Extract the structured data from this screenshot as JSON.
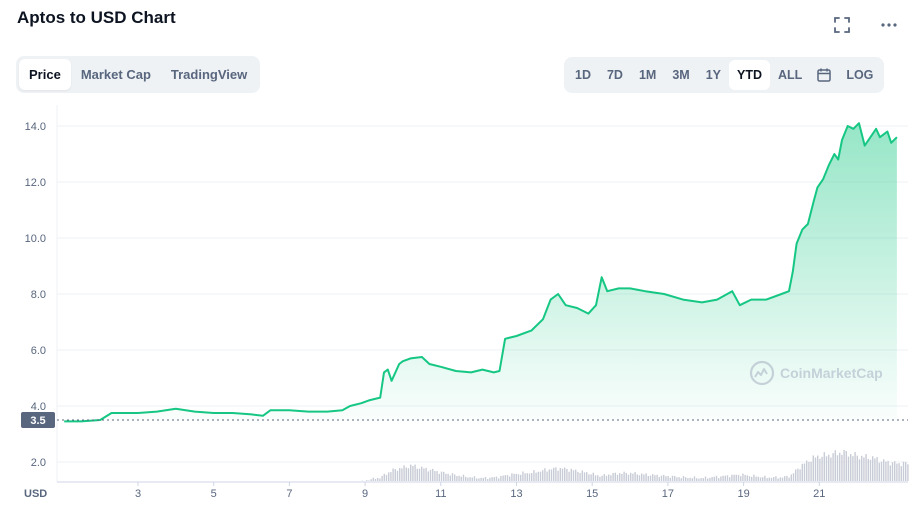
{
  "page": {
    "title": "Aptos to USD Chart"
  },
  "icons": {
    "expand": "fullscreen-icon",
    "more": "more-horizontal-icon",
    "calendar": "calendar-icon",
    "watermark": "coinmarketcap-logo"
  },
  "tabs": [
    {
      "label": "Price",
      "active": true
    },
    {
      "label": "Market Cap",
      "active": false
    },
    {
      "label": "TradingView",
      "active": false
    }
  ],
  "ranges": [
    {
      "label": "1D",
      "active": false
    },
    {
      "label": "7D",
      "active": false
    },
    {
      "label": "1M",
      "active": false
    },
    {
      "label": "3M",
      "active": false
    },
    {
      "label": "1Y",
      "active": false
    },
    {
      "label": "YTD",
      "active": true
    },
    {
      "label": "ALL",
      "active": false
    }
  ],
  "log_label": "LOG",
  "watermark_text": "CoinMarketCap",
  "colors": {
    "line": "#16c784",
    "volume": "#c8ccd6",
    "accent_text": "#58667e",
    "price_tag": "#58667e"
  },
  "chart_data": {
    "type": "line",
    "title": "Aptos to USD Chart",
    "xlabel": "",
    "ylabel": "USD",
    "ylim": [
      3.5,
      14.5
    ],
    "y_ticks": [
      "14.0",
      "12.0",
      "10.0",
      "8.0",
      "6.0",
      "4.0"
    ],
    "volume_tick": "2.0",
    "x_ticks": [
      "3",
      "5",
      "7",
      "9",
      "11",
      "13",
      "15",
      "17",
      "19",
      "21"
    ],
    "x_tick_days": [
      3,
      5,
      7,
      9,
      11,
      13,
      15,
      17,
      19,
      21
    ],
    "current_price_label": "3.5",
    "currency_label": "USD",
    "series": [
      {
        "x": [
          1.05,
          1.5,
          2.0,
          2.3,
          2.5,
          3.0,
          3.5,
          4.0,
          4.5,
          5.0,
          5.5,
          6.0,
          6.3,
          6.5,
          7.0,
          7.5,
          8.0,
          8.4,
          8.6,
          8.9,
          9.1,
          9.4,
          9.5,
          9.6,
          9.7,
          9.9,
          10.0,
          10.2,
          10.5,
          10.7,
          11.0,
          11.4,
          11.8,
          12.1,
          12.4,
          12.55,
          12.7,
          13.0,
          13.4,
          13.7,
          13.9,
          14.1,
          14.3,
          14.6,
          14.9,
          15.1,
          15.25,
          15.4,
          15.7,
          16.0,
          16.4,
          16.9,
          17.4,
          17.9,
          18.3,
          18.7,
          18.9,
          19.2,
          19.6,
          20.0,
          20.2,
          20.3,
          20.4,
          20.55,
          20.7,
          20.85,
          20.95,
          21.1,
          21.25,
          21.4,
          21.5,
          21.6,
          21.75,
          21.9,
          22.05,
          22.2,
          22.4,
          22.5,
          22.6,
          22.8,
          22.9,
          23.05
        ],
        "y": [
          3.45,
          3.45,
          3.5,
          3.75,
          3.75,
          3.75,
          3.8,
          3.9,
          3.8,
          3.75,
          3.75,
          3.7,
          3.65,
          3.85,
          3.85,
          3.8,
          3.8,
          3.85,
          4.0,
          4.1,
          4.2,
          4.3,
          5.2,
          5.3,
          4.9,
          5.5,
          5.6,
          5.7,
          5.75,
          5.5,
          5.4,
          5.25,
          5.2,
          5.3,
          5.2,
          5.25,
          6.4,
          6.5,
          6.7,
          7.1,
          7.8,
          8.0,
          7.6,
          7.5,
          7.3,
          7.6,
          8.6,
          8.1,
          8.2,
          8.2,
          8.1,
          8.0,
          7.8,
          7.7,
          7.8,
          8.1,
          7.6,
          7.8,
          7.8,
          8.0,
          8.1,
          8.8,
          9.8,
          10.3,
          10.5,
          11.3,
          11.8,
          12.1,
          12.6,
          13.0,
          12.8,
          13.5,
          14.0,
          13.9,
          14.1,
          13.3,
          13.7,
          13.9,
          13.6,
          13.8,
          13.4,
          13.6
        ],
        "volume": [
          0.35,
          0.35,
          0.33,
          0.33,
          0.33,
          0.33,
          0.33,
          0.32,
          0.32,
          0.32,
          0.32,
          0.32,
          0.32,
          0.33,
          0.33,
          0.33,
          0.35,
          0.4,
          0.5,
          0.6,
          0.75,
          0.9,
          1.1,
          1.25,
          1.4,
          1.55,
          1.6,
          1.75,
          1.55,
          1.45,
          1.25,
          1.05,
          0.9,
          0.85,
          0.9,
          0.95,
          1.05,
          1.15,
          1.25,
          1.4,
          1.5,
          1.55,
          1.5,
          1.35,
          1.2,
          1.05,
          1.0,
          1.1,
          1.2,
          1.2,
          1.1,
          1.0,
          0.9,
          0.85,
          0.95,
          1.05,
          1.1,
          1.0,
          0.9,
          0.9,
          1.0,
          1.2,
          1.5,
          1.8,
          2.1,
          2.3,
          2.4,
          2.45,
          2.5,
          2.6,
          2.65,
          2.7,
          2.6,
          2.5,
          2.4,
          2.35,
          2.3,
          2.2,
          2.1,
          2.0,
          1.95,
          1.9
        ]
      }
    ]
  }
}
